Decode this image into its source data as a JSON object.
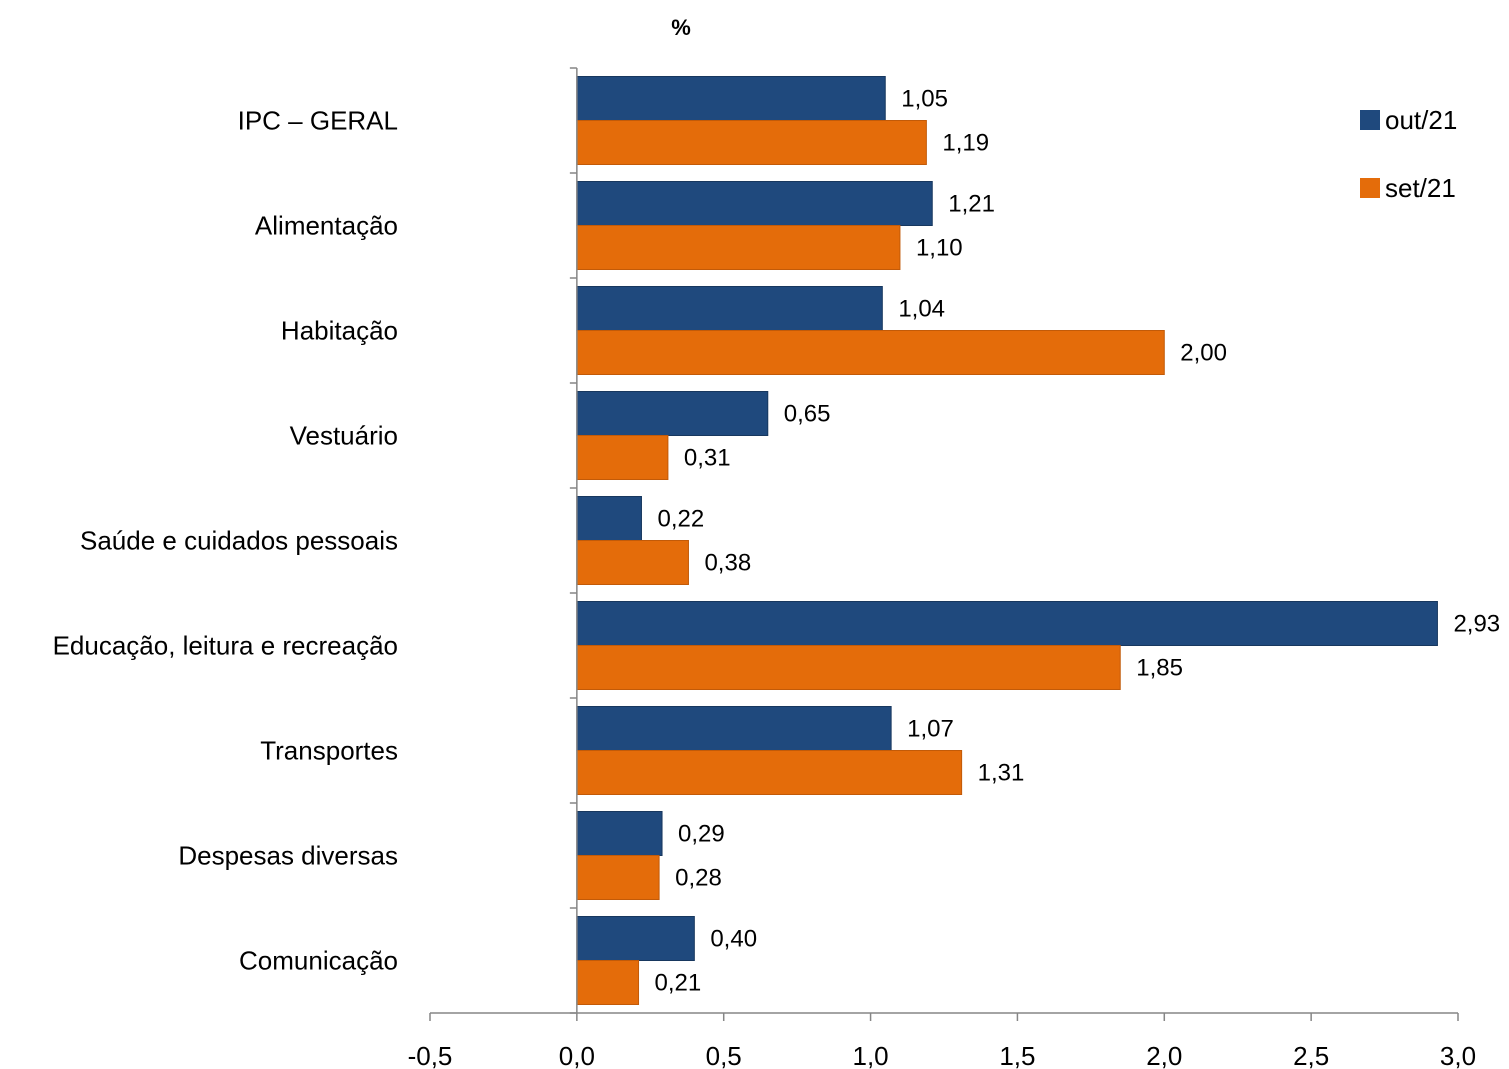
{
  "chart_data": {
    "type": "bar",
    "orientation": "horizontal",
    "ylabel": "%",
    "categories": [
      "IPC – GERAL",
      "Alimentação",
      "Habitação",
      "Vestuário",
      "Saúde e cuidados pessoais",
      "Educação, leitura e recreação",
      "Transportes",
      "Despesas diversas",
      "Comunicação"
    ],
    "series": [
      {
        "name": "out/21",
        "color": "#1F497D",
        "values": [
          1.05,
          1.21,
          1.04,
          0.65,
          0.22,
          2.93,
          1.07,
          0.29,
          0.4
        ],
        "labels": [
          "1,05",
          "1,21",
          "1,04",
          "0,65",
          "0,22",
          "2,93",
          "1,07",
          "0,29",
          "0,40"
        ]
      },
      {
        "name": "set/21",
        "color": "#E46C0A",
        "values": [
          1.19,
          1.1,
          2.0,
          0.31,
          0.38,
          1.85,
          1.31,
          0.28,
          0.21
        ],
        "labels": [
          "1,19",
          "1,10",
          "2,00",
          "0,31",
          "0,38",
          "1,85",
          "1,31",
          "0,28",
          "0,21"
        ]
      }
    ],
    "xlim": [
      -0.5,
      3.0
    ],
    "xticks": [
      -0.5,
      0.0,
      0.5,
      1.0,
      1.5,
      2.0,
      2.5,
      3.0
    ],
    "xtick_labels": [
      "-0,5",
      "0,0",
      "0,5",
      "1,0",
      "1,5",
      "2,0",
      "2,5",
      "3,0"
    ],
    "grid": false,
    "legend_position": "top-right"
  }
}
